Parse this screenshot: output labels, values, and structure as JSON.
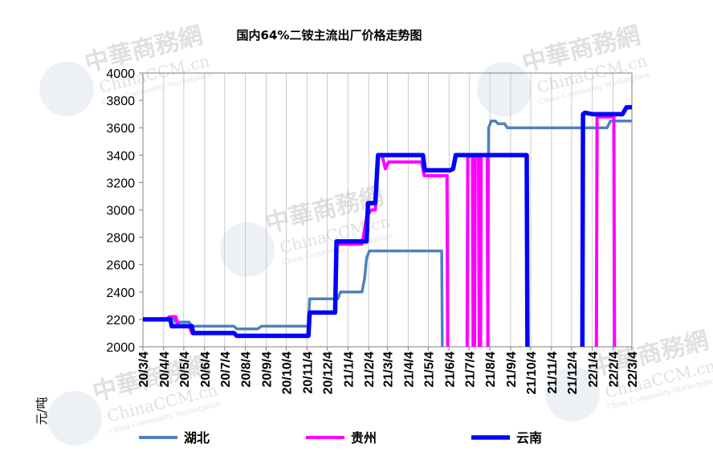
{
  "chart_data": {
    "type": "line",
    "title": "国内64%二铵主流出厂价格走势图",
    "ylabel": "元/吨",
    "xlabel": "",
    "ylim": [
      2000,
      4000
    ],
    "yticks": [
      2000,
      2200,
      2400,
      2600,
      2800,
      3000,
      3200,
      3400,
      3600,
      3800,
      4000
    ],
    "xlim": [
      "2020-03-04",
      "2022-03-04"
    ],
    "x_tick_labels": [
      "20/3/4",
      "20/4/4",
      "20/5/4",
      "20/6/4",
      "20/7/4",
      "20/8/4",
      "20/9/4",
      "20/10/4",
      "20/11/4",
      "20/12/4",
      "21/1/4",
      "21/2/4",
      "21/3/4",
      "21/4/4",
      "21/5/4",
      "21/6/4",
      "21/7/4",
      "21/8/4",
      "21/9/4",
      "21/10/4",
      "21/11/4",
      "21/12/4",
      "22/1/4",
      "22/2/4",
      "22/3/4"
    ],
    "x_tick_dates": [
      "2020-03-04",
      "2020-04-04",
      "2020-05-04",
      "2020-06-04",
      "2020-07-04",
      "2020-08-04",
      "2020-09-04",
      "2020-10-04",
      "2020-11-04",
      "2020-12-04",
      "2021-01-04",
      "2021-02-04",
      "2021-03-04",
      "2021-04-04",
      "2021-05-04",
      "2021-06-04",
      "2021-07-04",
      "2021-08-04",
      "2021-09-04",
      "2021-10-04",
      "2021-11-04",
      "2021-12-04",
      "2022-01-04",
      "2022-02-04",
      "2022-03-04"
    ],
    "grid": "vertical",
    "legend_position": "bottom",
    "series": [
      {
        "name": "湖北",
        "color": "#4f81bd",
        "segments": [
          [
            [
              "2020-03-04",
              2200
            ],
            [
              "2020-04-08",
              2200
            ],
            [
              "2020-04-12",
              2220
            ],
            [
              "2020-04-18",
              2220
            ],
            [
              "2020-04-22",
              2180
            ],
            [
              "2020-05-12",
              2180
            ],
            [
              "2020-05-16",
              2150
            ],
            [
              "2020-07-18",
              2150
            ],
            [
              "2020-07-22",
              2130
            ],
            [
              "2020-08-22",
              2130
            ],
            [
              "2020-08-28",
              2150
            ],
            [
              "2020-11-06",
              2150
            ],
            [
              "2020-11-08",
              2350
            ],
            [
              "2020-12-20",
              2350
            ],
            [
              "2020-12-24",
              2400
            ],
            [
              "2021-01-25",
              2400
            ],
            [
              "2021-01-29",
              2500
            ],
            [
              "2021-02-01",
              2650
            ],
            [
              "2021-02-05",
              2700
            ],
            [
              "2021-05-24",
              2700
            ],
            [
              "2021-05-25",
              2000
            ]
          ],
          [
            [
              "2021-08-01",
              2000
            ],
            [
              "2021-08-02",
              3600
            ],
            [
              "2021-08-06",
              3650
            ],
            [
              "2021-08-12",
              3650
            ],
            [
              "2021-08-16",
              3630
            ],
            [
              "2021-08-26",
              3630
            ],
            [
              "2021-08-30",
              3600
            ],
            [
              "2022-01-26",
              3600
            ],
            [
              "2022-01-31",
              3650
            ],
            [
              "2022-03-04",
              3650
            ]
          ]
        ]
      },
      {
        "name": "贵州",
        "color": "#ff00ff",
        "segments": [
          [
            [
              "2020-03-04",
              2200
            ],
            [
              "2020-04-08",
              2200
            ],
            [
              "2020-04-14",
              2220
            ],
            [
              "2020-04-22",
              2220
            ],
            [
              "2020-04-26",
              2150
            ],
            [
              "2020-05-12",
              2150
            ],
            [
              "2020-05-16",
              2100
            ],
            [
              "2020-07-18",
              2100
            ],
            [
              "2020-07-22",
              2080
            ],
            [
              "2020-11-06",
              2080
            ],
            [
              "2020-11-08",
              2250
            ],
            [
              "2020-12-16",
              2250
            ],
            [
              "2020-12-18",
              2750
            ],
            [
              "2021-01-25",
              2750
            ],
            [
              "2021-01-27",
              2800
            ],
            [
              "2021-02-01",
              2950
            ],
            [
              "2021-02-08",
              3000
            ],
            [
              "2021-02-14",
              3000
            ],
            [
              "2021-02-18",
              3400
            ],
            [
              "2021-02-24",
              3400
            ],
            [
              "2021-03-01",
              3300
            ],
            [
              "2021-03-06",
              3350
            ],
            [
              "2021-04-24",
              3350
            ],
            [
              "2021-04-28",
              3250
            ],
            [
              "2021-06-01",
              3250
            ],
            [
              "2021-06-02",
              2000
            ]
          ],
          [
            [
              "2021-07-01",
              2000
            ],
            [
              "2021-07-02",
              3380
            ],
            [
              "2021-07-06",
              3400
            ],
            [
              "2021-07-09",
              3400
            ],
            [
              "2021-07-10",
              2000
            ],
            [
              "2021-07-12",
              2000
            ],
            [
              "2021-07-13",
              3400
            ],
            [
              "2021-07-18",
              3400
            ],
            [
              "2021-07-19",
              2000
            ],
            [
              "2021-07-21",
              2000
            ],
            [
              "2021-07-22",
              3400
            ],
            [
              "2021-07-31",
              3400
            ],
            [
              "2021-08-01",
              2000
            ]
          ],
          [
            [
              "2022-01-10",
              2000
            ],
            [
              "2022-01-11",
              3680
            ],
            [
              "2022-02-05",
              3680
            ],
            [
              "2022-02-06",
              2000
            ]
          ]
        ]
      },
      {
        "name": "云南",
        "color": "#0000ff",
        "segments": [
          [
            [
              "2020-03-04",
              2200
            ],
            [
              "2020-04-14",
              2200
            ],
            [
              "2020-04-16",
              2150
            ],
            [
              "2020-05-16",
              2150
            ],
            [
              "2020-05-18",
              2100
            ],
            [
              "2020-07-18",
              2100
            ],
            [
              "2020-07-22",
              2080
            ],
            [
              "2020-11-06",
              2080
            ],
            [
              "2020-11-08",
              2250
            ],
            [
              "2020-12-16",
              2250
            ],
            [
              "2020-12-18",
              2770
            ],
            [
              "2021-02-01",
              2770
            ],
            [
              "2021-02-03",
              3050
            ],
            [
              "2021-02-14",
              3050
            ],
            [
              "2021-02-18",
              3400
            ],
            [
              "2021-04-26",
              3400
            ],
            [
              "2021-04-29",
              3290
            ],
            [
              "2021-06-06",
              3290
            ],
            [
              "2021-06-10",
              3300
            ],
            [
              "2021-06-14",
              3400
            ],
            [
              "2021-09-28",
              3400
            ],
            [
              "2021-09-29",
              2000
            ]
          ],
          [
            [
              "2021-12-20",
              2000
            ],
            [
              "2021-12-21",
              3700
            ],
            [
              "2021-12-24",
              3710
            ],
            [
              "2022-01-04",
              3700
            ],
            [
              "2022-02-18",
              3700
            ],
            [
              "2022-02-24",
              3750
            ],
            [
              "2022-03-04",
              3750
            ]
          ]
        ]
      }
    ],
    "legend": [
      {
        "label": "湖北",
        "color": "#4f81bd"
      },
      {
        "label": "贵州",
        "color": "#ff00ff"
      },
      {
        "label": "云南",
        "color": "#0000ff"
      }
    ]
  },
  "watermark": {
    "brand": "中華商務網",
    "site": "ChinaCCM.cn",
    "tagline": "China Commodity Marketplace"
  }
}
